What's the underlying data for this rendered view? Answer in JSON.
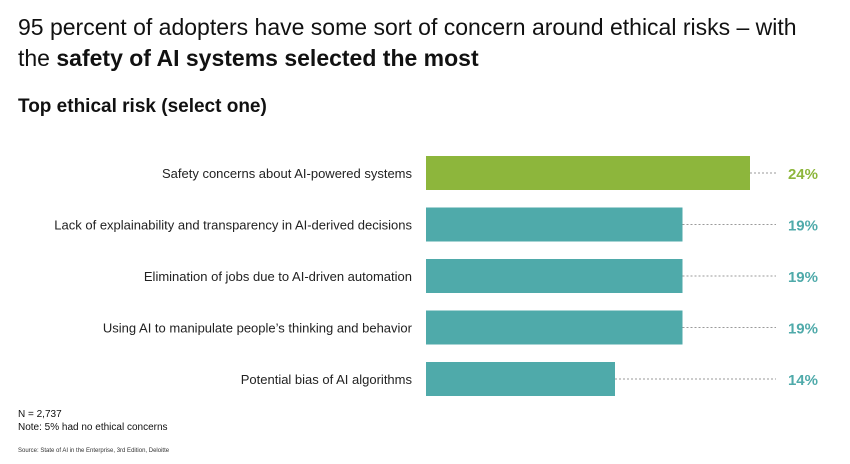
{
  "headline": {
    "part1": "95 percent of adopters have some sort of concern around ethical risks – with the ",
    "bold": "safety of AI systems selected the most"
  },
  "subtitle": "Top ethical risk (select one)",
  "notes": {
    "n": "N = 2,737",
    "note": "Note: 5% had no ethical concerns",
    "source": "Source: State of AI in the Enterprise, 3rd Edition, Deloitte"
  },
  "colors": {
    "highlight": "#8DB63C",
    "default": "#4FAAAA"
  },
  "chart_data": {
    "type": "bar",
    "orientation": "horizontal",
    "title": "Top ethical risk (select one)",
    "categories": [
      "Safety concerns about AI-powered systems",
      "Lack of explainability and transparency in AI-derived decisions",
      "Elimination of jobs due to AI-driven automation",
      "Using AI to manipulate people’s thinking and behavior",
      "Potential bias of AI algorithms"
    ],
    "values": [
      24,
      19,
      19,
      19,
      14
    ],
    "value_labels": [
      "24%",
      "19%",
      "19%",
      "19%",
      "14%"
    ],
    "highlight_index": 0,
    "xlim": [
      0,
      24
    ],
    "grid": false,
    "legend": "none"
  }
}
